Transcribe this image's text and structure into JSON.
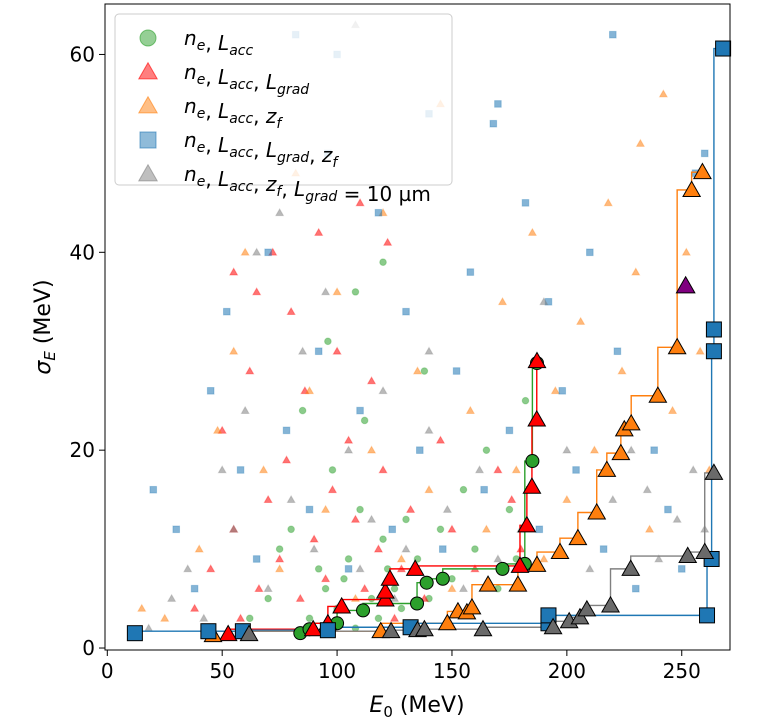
{
  "chart_data": {
    "type": "scatter",
    "xlabel": {
      "main": "E",
      "sub": "0",
      "unit": " (MeV)"
    },
    "ylabel": {
      "main": "σ",
      "sub": "E",
      "unit": " (MeV)"
    },
    "xlim": [
      -1,
      271
    ],
    "ylim": [
      -0.2,
      65.1
    ],
    "xticks": [
      0,
      50,
      100,
      150,
      200,
      250
    ],
    "yticks": [
      0,
      20,
      40,
      60
    ],
    "grid": false,
    "legend_position": "top-left",
    "series": [
      {
        "name": "n_e, L_acc",
        "label_parts": [
          [
            "n",
            "e"
          ],
          [
            "L",
            "acc"
          ]
        ],
        "label_suffix": "",
        "marker": "circle",
        "color": "#2ca02c",
        "points": [
          [
            62,
            3
          ],
          [
            70,
            5
          ],
          [
            75,
            10
          ],
          [
            80,
            12
          ],
          [
            85,
            24
          ],
          [
            88,
            3
          ],
          [
            92,
            8
          ],
          [
            95,
            6
          ],
          [
            98,
            18
          ],
          [
            100,
            4
          ],
          [
            103,
            7
          ],
          [
            105,
            9
          ],
          [
            108,
            2
          ],
          [
            110,
            14
          ],
          [
            112,
            23
          ],
          [
            115,
            5
          ],
          [
            118,
            3
          ],
          [
            120,
            11
          ],
          [
            122,
            8
          ],
          [
            125,
            6
          ],
          [
            128,
            4
          ],
          [
            130,
            13
          ],
          [
            135,
            9
          ],
          [
            138,
            28
          ],
          [
            140,
            5
          ],
          [
            145,
            12
          ],
          [
            150,
            7
          ],
          [
            155,
            16
          ],
          [
            160,
            10
          ],
          [
            165,
            20
          ],
          [
            170,
            6
          ],
          [
            175,
            14
          ],
          [
            178,
            9
          ],
          [
            182,
            25
          ],
          [
            120,
            39
          ],
          [
            96,
            31
          ],
          [
            108,
            36
          ]
        ],
        "pareto": [
          [
            84,
            1.5
          ],
          [
            88,
            1.9
          ],
          [
            100,
            2.5
          ],
          [
            111.3,
            3.8
          ],
          [
            134.8,
            4.5
          ],
          [
            139,
            6.6
          ],
          [
            146,
            7
          ],
          [
            172,
            8
          ],
          [
            181.7,
            8.5
          ],
          [
            185,
            18.9
          ],
          [
            187,
            28.8
          ]
        ]
      },
      {
        "name": "n_e, L_acc, L_grad",
        "label_parts": [
          [
            "n",
            "e"
          ],
          [
            "L",
            "acc"
          ],
          [
            "L",
            "grad"
          ]
        ],
        "label_suffix": "",
        "marker": "triangle",
        "color": "#ff0000",
        "points": [
          [
            38,
            4
          ],
          [
            45,
            8
          ],
          [
            50,
            22
          ],
          [
            55,
            12
          ],
          [
            58,
            3
          ],
          [
            62,
            28
          ],
          [
            66,
            6
          ],
          [
            70,
            15
          ],
          [
            72,
            40
          ],
          [
            75,
            9
          ],
          [
            78,
            19
          ],
          [
            80,
            34
          ],
          [
            84,
            5
          ],
          [
            86,
            26
          ],
          [
            90,
            11
          ],
          [
            92,
            42
          ],
          [
            95,
            7
          ],
          [
            98,
            16
          ],
          [
            100,
            30
          ],
          [
            103,
            4
          ],
          [
            105,
            21
          ],
          [
            108,
            13
          ],
          [
            110,
            45
          ],
          [
            112,
            6
          ],
          [
            115,
            27
          ],
          [
            118,
            10
          ],
          [
            120,
            18
          ],
          [
            122,
            41
          ],
          [
            125,
            3
          ],
          [
            128,
            8
          ],
          [
            132,
            14
          ],
          [
            138,
            5
          ],
          [
            145,
            21
          ],
          [
            150,
            12
          ],
          [
            160,
            8
          ],
          [
            170,
            18
          ],
          [
            176,
            15
          ],
          [
            180,
            10
          ],
          [
            55,
            38
          ],
          [
            65,
            36
          ]
        ],
        "pareto": [
          [
            52.6,
            1.4
          ],
          [
            89.6,
            1.9
          ],
          [
            96,
            2.5
          ],
          [
            102,
            4.2
          ],
          [
            121,
            4.9
          ],
          [
            121,
            5.7
          ],
          [
            123,
            7
          ],
          [
            134,
            8
          ],
          [
            179.6,
            8.3
          ],
          [
            182.6,
            12.4
          ],
          [
            184.8,
            16.3
          ],
          [
            186.9,
            23.1
          ],
          [
            187,
            29
          ]
        ]
      },
      {
        "name": "n_e, L_acc, z_f",
        "label_parts": [
          [
            "n",
            "e"
          ],
          [
            "L",
            "acc"
          ],
          [
            "z",
            "f"
          ]
        ],
        "label_suffix": "",
        "marker": "triangle",
        "color": "#ff7f0e",
        "points": [
          [
            15,
            4
          ],
          [
            25,
            3
          ],
          [
            40,
            10
          ],
          [
            48,
            22
          ],
          [
            55,
            30
          ],
          [
            60,
            40
          ],
          [
            68,
            18
          ],
          [
            75,
            8
          ],
          [
            82,
            48
          ],
          [
            88,
            26
          ],
          [
            95,
            14
          ],
          [
            100,
            36
          ],
          [
            108,
            5
          ],
          [
            115,
            20
          ],
          [
            120,
            44
          ],
          [
            128,
            9
          ],
          [
            135,
            28
          ],
          [
            140,
            16
          ],
          [
            145,
            55
          ],
          [
            150,
            6
          ],
          [
            158,
            24
          ],
          [
            165,
            12
          ],
          [
            172,
            35
          ],
          [
            178,
            18
          ],
          [
            185,
            42
          ],
          [
            190,
            9
          ],
          [
            195,
            26
          ],
          [
            200,
            15
          ],
          [
            206,
            33
          ],
          [
            212,
            20
          ],
          [
            218,
            45
          ],
          [
            224,
            28
          ],
          [
            230,
            38
          ],
          [
            236,
            12
          ],
          [
            242,
            56
          ],
          [
            246,
            24
          ],
          [
            252,
            40
          ],
          [
            258,
            30
          ],
          [
            262,
            18
          ],
          [
            232,
            51
          ]
        ],
        "pareto": [
          [
            46,
            1.3
          ],
          [
            119,
            1.7
          ],
          [
            148,
            2.5
          ],
          [
            152.6,
            3.7
          ],
          [
            156.5,
            3.6
          ],
          [
            158.7,
            4.1
          ],
          [
            165.7,
            6.4
          ],
          [
            178.7,
            6.4
          ],
          [
            187,
            8.4
          ],
          [
            197,
            9.7
          ],
          [
            204.8,
            11.1
          ],
          [
            213,
            13.7
          ],
          [
            217.4,
            18
          ],
          [
            223.5,
            19.7
          ],
          [
            225,
            22.1
          ],
          [
            228,
            22.7
          ],
          [
            239.6,
            25.5
          ],
          [
            248,
            30.4
          ],
          [
            254.3,
            46.3
          ],
          [
            259,
            48.1
          ]
        ]
      },
      {
        "name": "n_e, L_acc, L_grad, z_f",
        "label_parts": [
          [
            "n",
            "e"
          ],
          [
            "L",
            "acc"
          ],
          [
            "L",
            "grad"
          ],
          [
            "z",
            "f"
          ]
        ],
        "label_suffix": "",
        "marker": "square",
        "color": "#1f77b4",
        "points": [
          [
            20,
            16
          ],
          [
            30,
            12
          ],
          [
            38,
            6
          ],
          [
            45,
            26
          ],
          [
            52,
            34
          ],
          [
            58,
            18
          ],
          [
            65,
            9
          ],
          [
            70,
            40
          ],
          [
            78,
            22
          ],
          [
            82,
            62
          ],
          [
            88,
            14
          ],
          [
            92,
            30
          ],
          [
            96,
            50
          ],
          [
            100,
            60
          ],
          [
            105,
            8
          ],
          [
            110,
            24
          ],
          [
            118,
            44
          ],
          [
            124,
            12
          ],
          [
            130,
            34
          ],
          [
            136,
            20
          ],
          [
            140,
            54
          ],
          [
            146,
            10
          ],
          [
            152,
            28
          ],
          [
            158,
            38
          ],
          [
            164,
            16
          ],
          [
            170,
            55
          ],
          [
            175,
            22
          ],
          [
            182,
            45
          ],
          [
            188,
            12
          ],
          [
            192,
            35
          ],
          [
            198,
            26
          ],
          [
            204,
            18
          ],
          [
            210,
            40
          ],
          [
            216,
            10
          ],
          [
            222,
            30
          ],
          [
            230,
            6
          ],
          [
            238,
            20
          ],
          [
            244,
            14
          ],
          [
            250,
            8
          ],
          [
            256,
            48
          ],
          [
            260,
            50
          ],
          [
            220,
            62
          ],
          [
            168,
            53
          ]
        ],
        "pareto": [
          [
            12,
            1.5
          ],
          [
            44,
            1.7
          ],
          [
            59,
            1.7
          ],
          [
            96,
            1.8
          ],
          [
            132,
            2.1
          ],
          [
            192,
            2.5
          ],
          [
            192,
            3.3
          ],
          [
            261,
            3.3
          ],
          [
            263,
            9
          ],
          [
            264,
            30
          ],
          [
            264,
            32.2
          ],
          [
            268,
            60.6
          ]
        ]
      },
      {
        "name": "n_e, L_acc, z_f, L_grad = 10 µm",
        "label_parts": [
          [
            "n",
            "e"
          ],
          [
            "L",
            "acc"
          ],
          [
            "z",
            "f"
          ],
          [
            "L",
            "grad"
          ]
        ],
        "label_suffix": " = 10 µm",
        "marker": "triangle",
        "color": "#808080",
        "points": [
          [
            18,
            2
          ],
          [
            28,
            5
          ],
          [
            35,
            8
          ],
          [
            42,
            3
          ],
          [
            50,
            18
          ],
          [
            55,
            12
          ],
          [
            60,
            24
          ],
          [
            65,
            40
          ],
          [
            70,
            6
          ],
          [
            75,
            44
          ],
          [
            80,
            15
          ],
          [
            85,
            30
          ],
          [
            90,
            10
          ],
          [
            95,
            36
          ],
          [
            100,
            4
          ],
          [
            105,
            20
          ],
          [
            110,
            8
          ],
          [
            115,
            13
          ],
          [
            120,
            26
          ],
          [
            125,
            5
          ],
          [
            130,
            10
          ],
          [
            140,
            22
          ],
          [
            148,
            14
          ],
          [
            155,
            6
          ],
          [
            162,
            18
          ],
          [
            170,
            9
          ],
          [
            180,
            12
          ],
          [
            190,
            35
          ],
          [
            200,
            20
          ],
          [
            210,
            8
          ],
          [
            220,
            15
          ],
          [
            228,
            20
          ],
          [
            235,
            16
          ],
          [
            240,
            9
          ],
          [
            248,
            13
          ],
          [
            255,
            18
          ],
          [
            260,
            12
          ],
          [
            108,
            63
          ],
          [
            140,
            30
          ]
        ],
        "pareto": [
          [
            61.7,
            1.4
          ],
          [
            123.5,
            1.7
          ],
          [
            135,
            1.8
          ],
          [
            138,
            1.9
          ],
          [
            163.5,
            1.9
          ],
          [
            194,
            2.1
          ],
          [
            201,
            2.7
          ],
          [
            205.7,
            3.1
          ],
          [
            208.7,
            3.9
          ],
          [
            219,
            4.3
          ],
          [
            227.8,
            8
          ],
          [
            252.6,
            9.3
          ],
          [
            260,
            9.7
          ],
          [
            264,
            17.7
          ]
        ]
      }
    ],
    "highlight": {
      "point": [
        251.7,
        36.6
      ],
      "color": "#800080",
      "marker": "triangle"
    }
  }
}
